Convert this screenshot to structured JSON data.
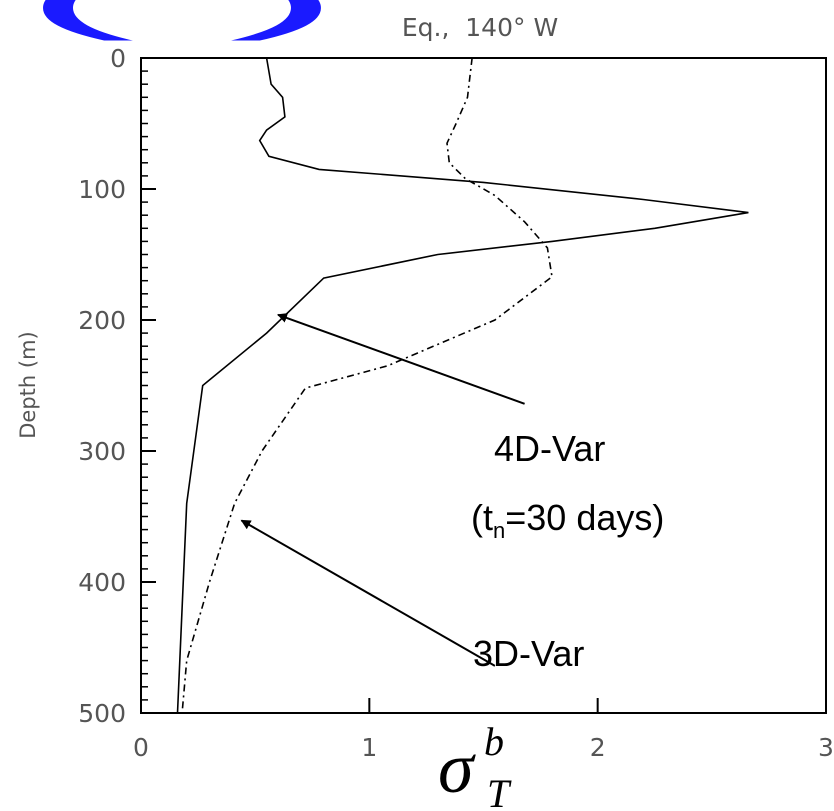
{
  "header": {
    "fragment": "( )"
  },
  "chart_data": {
    "type": "line",
    "title": "Eq.,  140° W",
    "ylabel": "Depth (m)",
    "xlabel": {
      "symbol": "σ",
      "superscript": "b",
      "subscript": "T"
    },
    "xlim": [
      0,
      3
    ],
    "ylim": [
      0,
      500
    ],
    "y_inverted": true,
    "x_ticks": [
      "0",
      "1",
      "2",
      "3"
    ],
    "y_ticks": [
      "0",
      "100",
      "200",
      "300",
      "400",
      "500"
    ],
    "series": [
      {
        "style": "solid",
        "points": [
          [
            0.55,
            0
          ],
          [
            0.57,
            20
          ],
          [
            0.62,
            30
          ],
          [
            0.63,
            45
          ],
          [
            0.55,
            55
          ],
          [
            0.52,
            63
          ],
          [
            0.56,
            75
          ],
          [
            0.78,
            85
          ],
          [
            1.5,
            95
          ],
          [
            2.2,
            108
          ],
          [
            2.66,
            118
          ],
          [
            2.25,
            130
          ],
          [
            1.8,
            140
          ],
          [
            1.3,
            150
          ],
          [
            0.8,
            168
          ],
          [
            0.55,
            210
          ],
          [
            0.27,
            250
          ],
          [
            0.2,
            340
          ],
          [
            0.18,
            420
          ],
          [
            0.16,
            500
          ]
        ]
      },
      {
        "style": "dashdot",
        "points": [
          [
            1.45,
            0
          ],
          [
            1.43,
            30
          ],
          [
            1.38,
            50
          ],
          [
            1.34,
            65
          ],
          [
            1.35,
            80
          ],
          [
            1.42,
            92
          ],
          [
            1.55,
            105
          ],
          [
            1.68,
            125
          ],
          [
            1.78,
            145
          ],
          [
            1.8,
            167
          ],
          [
            1.55,
            200
          ],
          [
            1.08,
            235
          ],
          [
            0.72,
            252
          ],
          [
            0.53,
            300
          ],
          [
            0.41,
            340
          ],
          [
            0.3,
            400
          ],
          [
            0.2,
            460
          ],
          [
            0.18,
            500
          ]
        ]
      }
    ],
    "annotations": [
      {
        "lines": [
          "4D-Var",
          "(t",
          "n",
          "=30 days)"
        ],
        "arrow_from": [
          1.68,
          264
        ],
        "arrow_to": [
          0.6,
          196
        ]
      },
      {
        "lines": [
          "3D-Var"
        ],
        "arrow_from": [
          1.55,
          464
        ],
        "arrow_to": [
          0.44,
          353
        ]
      }
    ]
  }
}
